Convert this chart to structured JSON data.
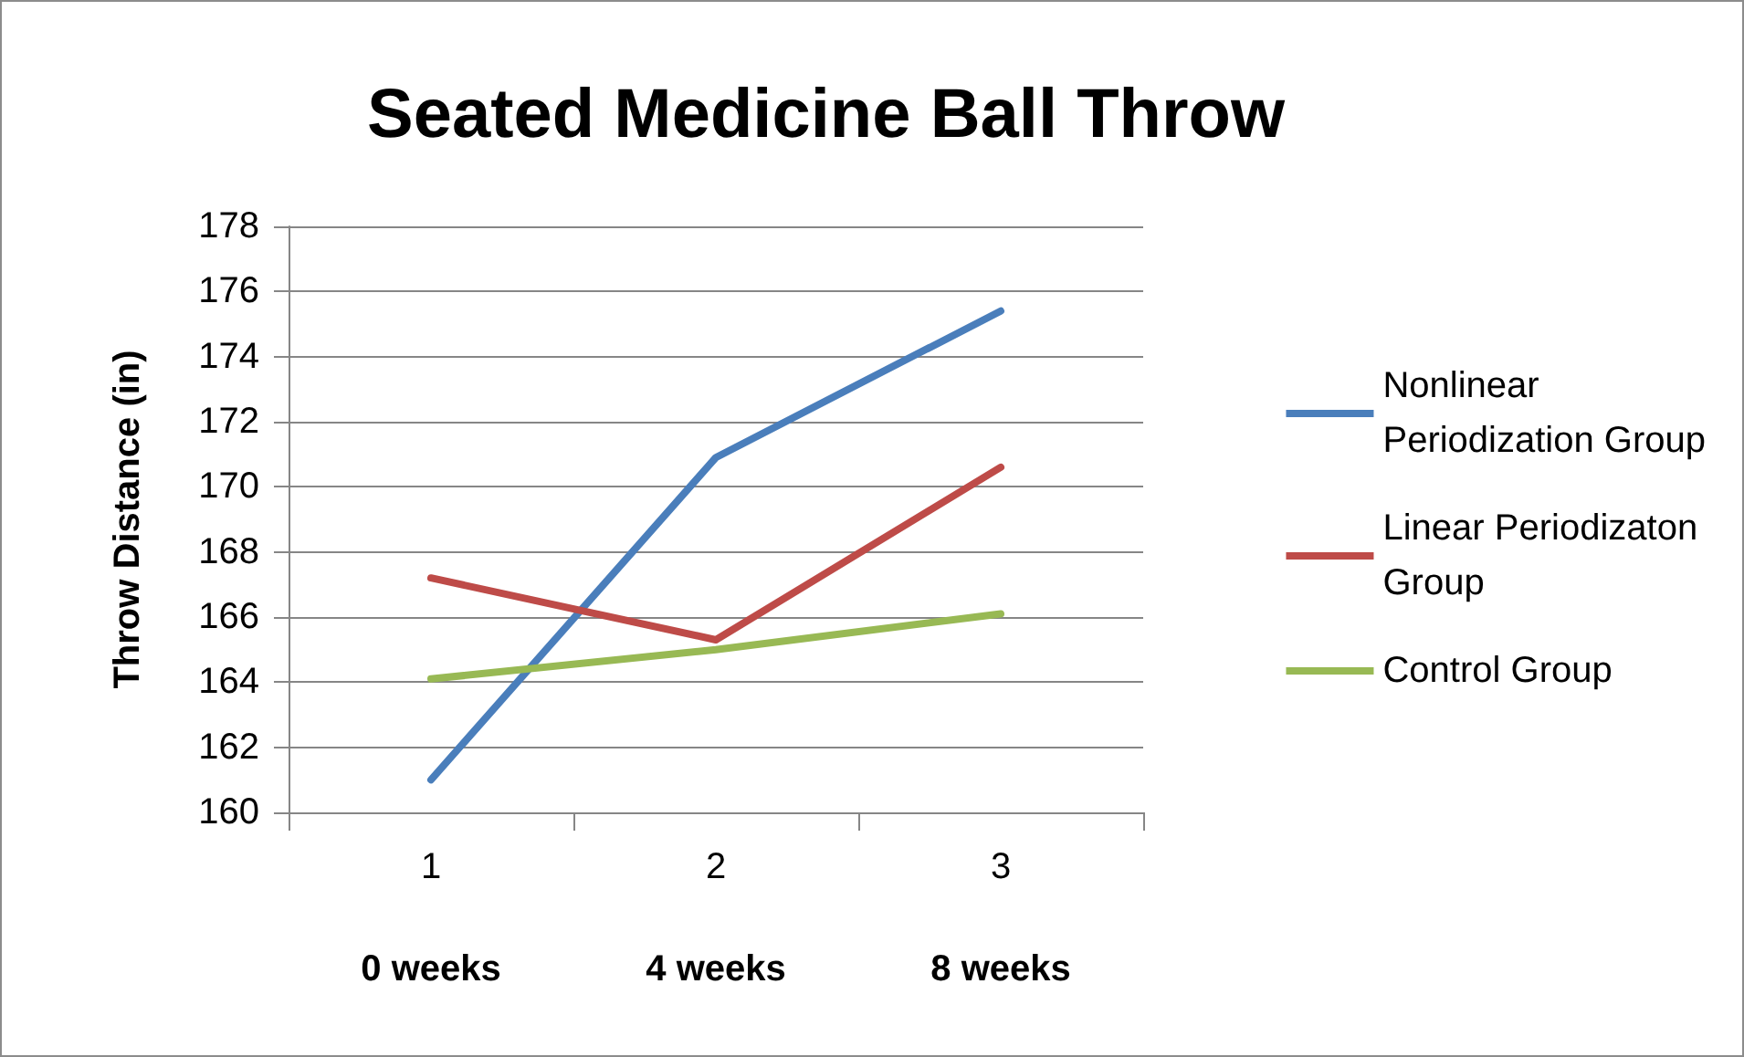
{
  "chart_data": {
    "type": "line",
    "title": "Seated Medicine Ball Throw",
    "ylabel": "Throw Distance (in)",
    "categories": [
      "1",
      "2",
      "3"
    ],
    "annotations": [
      "0 weeks",
      "4 weeks",
      "8 weeks"
    ],
    "series": [
      {
        "name": "Nonlinear Periodization Group",
        "color": "#4a7ebb",
        "values": [
          161.0,
          170.9,
          175.4
        ]
      },
      {
        "name": "Linear Periodizaton Group",
        "color": "#be4b48",
        "values": [
          167.2,
          165.3,
          170.6
        ]
      },
      {
        "name": "Control Group",
        "color": "#98b954",
        "values": [
          164.1,
          165.0,
          166.1
        ]
      }
    ],
    "ylim": [
      160,
      178
    ],
    "yticks": [
      160,
      162,
      164,
      166,
      168,
      170,
      172,
      174,
      176,
      178
    ],
    "grid": "y",
    "legend": "right",
    "marker": "none",
    "line_style": "solid"
  }
}
